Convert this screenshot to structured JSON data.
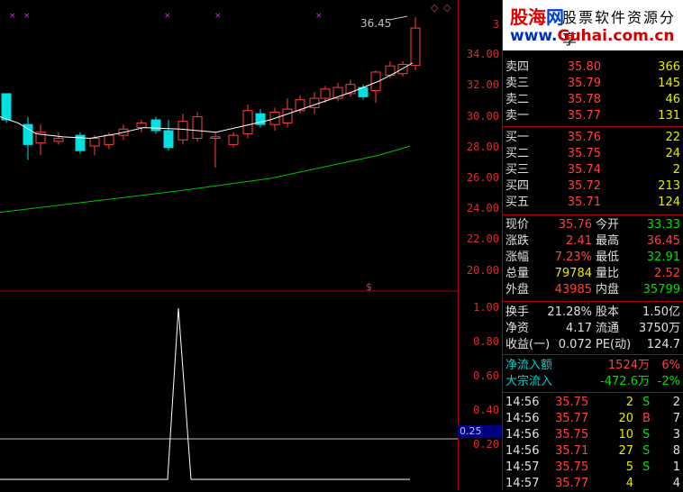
{
  "chart": {
    "high_label": "36.45",
    "y_ticks": [
      "34.00",
      "32.00",
      "30.00",
      "28.00",
      "26.00",
      "24.00",
      "22.00",
      "20.00"
    ],
    "y_ticks_top_partial": "3",
    "ind_ticks": [
      "1.00",
      "0.80",
      "0.60",
      "0.40",
      "0.20"
    ],
    "ind_marker": "0.25",
    "colors": {
      "up": "#ff4040",
      "down": "#00e0e0",
      "ma_short": "#ffffff",
      "ma_long": "#00c000",
      "divider": "#b00000"
    }
  },
  "logo": {
    "brand_red": "股海",
    "brand_blue": "网",
    "slogan": "股票软件资源分享",
    "url_blue": "www.",
    "url_red": "Guhai",
    "url_tail": ".com.cn"
  },
  "orderbook": {
    "sell": [
      {
        "label": "卖四",
        "price": "35.80",
        "vol": "366"
      },
      {
        "label": "卖三",
        "price": "35.79",
        "vol": "145"
      },
      {
        "label": "卖二",
        "price": "35.78",
        "vol": "46"
      },
      {
        "label": "卖一",
        "price": "35.77",
        "vol": "131"
      }
    ],
    "buy": [
      {
        "label": "买一",
        "price": "35.76",
        "vol": "22"
      },
      {
        "label": "买二",
        "price": "35.75",
        "vol": "24"
      },
      {
        "label": "买三",
        "price": "35.74",
        "vol": "2"
      },
      {
        "label": "买四",
        "price": "35.72",
        "vol": "213"
      },
      {
        "label": "买五",
        "price": "35.71",
        "vol": "124"
      }
    ]
  },
  "quote": [
    {
      "l1": "现价",
      "v1": "35.76",
      "l2": "今开",
      "v2": "33.33"
    },
    {
      "l1": "涨跌",
      "v1": "2.41",
      "l2": "最高",
      "v2": "36.45"
    },
    {
      "l1": "涨幅",
      "v1": "7.23%",
      "l2": "最低",
      "v2": "32.91"
    },
    {
      "l1": "总量",
      "v1": "79784",
      "l2": "量比",
      "v2": "2.52"
    },
    {
      "l1": "外盘",
      "v1": "43985",
      "l2": "内盘",
      "v2": "35799"
    }
  ],
  "fundamentals": [
    {
      "l1": "换手",
      "v1": "21.28%",
      "l2": "股本",
      "v2": "1.50亿"
    },
    {
      "l1": "净资",
      "v1": "4.17",
      "l2": "流通",
      "v2": "3750万"
    },
    {
      "l1": "收益(一)",
      "v1": "0.072",
      "l2": "PE(动)",
      "v2": "124.7"
    }
  ],
  "flows": [
    {
      "label": "净流入额",
      "value": "1524万",
      "pct": "6%"
    },
    {
      "label": "大宗流入",
      "value": "-472.6万",
      "pct": "-2%"
    }
  ],
  "ticks": [
    {
      "time": "14:56",
      "price": "35.75",
      "vol": "2",
      "side": "S",
      "n": "2"
    },
    {
      "time": "14:56",
      "price": "35.77",
      "vol": "20",
      "side": "B",
      "n": "7"
    },
    {
      "time": "14:56",
      "price": "35.75",
      "vol": "10",
      "side": "S",
      "n": "3"
    },
    {
      "time": "14:56",
      "price": "35.71",
      "vol": "27",
      "side": "S",
      "n": "8"
    },
    {
      "time": "14:57",
      "price": "35.75",
      "vol": "5",
      "side": "S",
      "n": "1"
    },
    {
      "time": "14:57",
      "price": "35.77",
      "vol": "4",
      "side": "",
      "n": "4"
    }
  ]
}
